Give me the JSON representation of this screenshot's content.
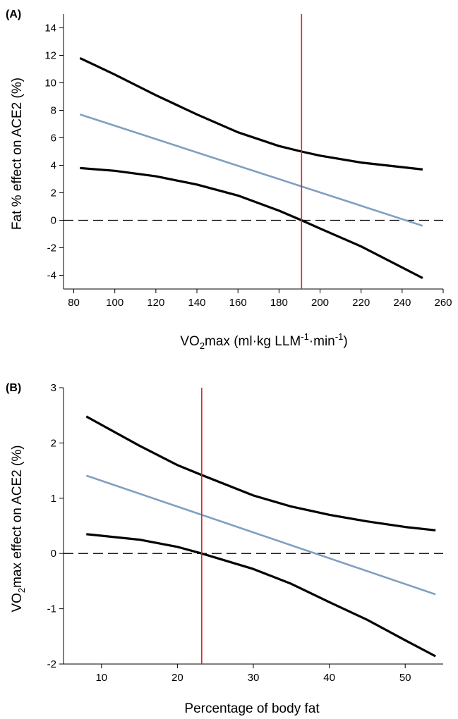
{
  "chart_data": [
    {
      "type": "line",
      "panel_label": "(A)",
      "xlabel": {
        "main": "VO",
        "sub": "2",
        "rest1": "max (ml·kg LLM",
        "sup1": "-1",
        "rest2": "·min",
        "sup2": "-1",
        "rest3": ")"
      },
      "ylabel": {
        "main": "Fat % effect on ACE2 (%)"
      },
      "xlim": [
        75,
        260
      ],
      "ylim": [
        -5,
        15
      ],
      "xticks": [
        80,
        100,
        120,
        140,
        160,
        180,
        200,
        220,
        240,
        260
      ],
      "yticks": [
        -4,
        -2,
        0,
        2,
        4,
        6,
        8,
        10,
        12,
        14
      ],
      "reference_hline": 0,
      "reference_vline": 191,
      "series": [
        {
          "role": "upper",
          "color": "#000000",
          "x": [
            83,
            100,
            120,
            140,
            160,
            180,
            191,
            200,
            220,
            250
          ],
          "y": [
            11.8,
            10.6,
            9.1,
            7.7,
            6.4,
            5.4,
            5.0,
            4.7,
            4.2,
            3.7
          ]
        },
        {
          "role": "estimate",
          "color": "#7f9fbf",
          "x": [
            83,
            250
          ],
          "y": [
            7.7,
            -0.4
          ]
        },
        {
          "role": "lower",
          "color": "#000000",
          "x": [
            83,
            100,
            120,
            140,
            160,
            180,
            191,
            200,
            220,
            250
          ],
          "y": [
            3.8,
            3.6,
            3.2,
            2.6,
            1.8,
            0.7,
            0.0,
            -0.6,
            -1.9,
            -4.2
          ]
        }
      ]
    },
    {
      "type": "line",
      "panel_label": "(B)",
      "xlabel": {
        "main": "Percentage of body fat"
      },
      "ylabel": {
        "main": "VO",
        "sub": "2",
        "rest1": "max effect on ACE2 (%)"
      },
      "xlim": [
        5,
        55
      ],
      "ylim": [
        -2,
        3
      ],
      "xticks": [
        10,
        20,
        30,
        40,
        50
      ],
      "yticks": [
        -2,
        -1,
        0,
        1,
        2,
        3
      ],
      "reference_hline": 0,
      "reference_vline": 23.2,
      "series": [
        {
          "role": "upper",
          "color": "#000000",
          "x": [
            8,
            15,
            20,
            23.2,
            30,
            35,
            40,
            45,
            50,
            54
          ],
          "y": [
            2.48,
            1.95,
            1.6,
            1.42,
            1.05,
            0.85,
            0.7,
            0.58,
            0.48,
            0.42
          ]
        },
        {
          "role": "estimate",
          "color": "#7f9fbf",
          "x": [
            8,
            54
          ],
          "y": [
            1.41,
            -0.74
          ]
        },
        {
          "role": "lower",
          "color": "#000000",
          "x": [
            8,
            15,
            20,
            23.2,
            30,
            35,
            40,
            45,
            50,
            54
          ],
          "y": [
            0.35,
            0.25,
            0.12,
            0.0,
            -0.28,
            -0.55,
            -0.88,
            -1.2,
            -1.57,
            -1.86
          ]
        }
      ]
    }
  ],
  "colors": {
    "reference_vline": "#d62728",
    "zero_line": "#000000"
  }
}
